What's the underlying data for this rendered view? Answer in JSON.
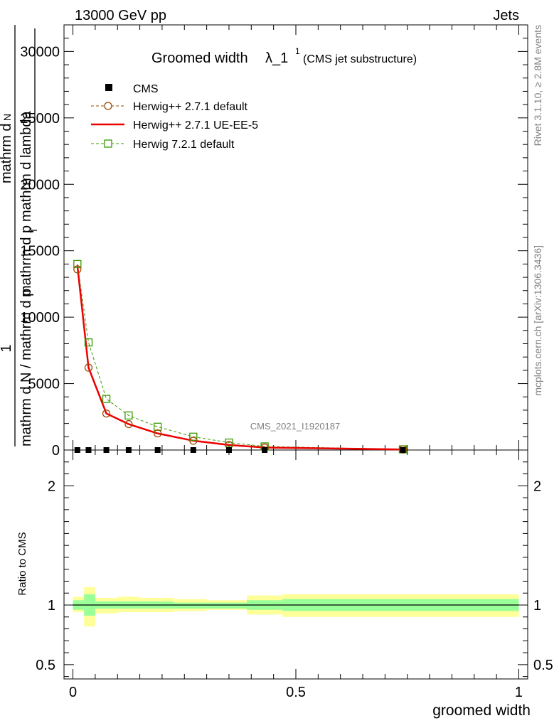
{
  "header": {
    "left": "13000 GeV pp",
    "right": "Jets",
    "watermark": "CMS_2021_I1920187",
    "side_top": "Rivet 3.1.10, ≥ 2.8M events",
    "side_bottom": "mcplots.cern.ch [arXiv:1306.3436]"
  },
  "chart_data": {
    "type": "line",
    "title_main": "Groomed width",
    "title_lambda": "λ_1",
    "title_sup": "1",
    "title_suffix": "(CMS jet substructure)",
    "xlabel": "groomed width",
    "ylabel_num": "1",
    "ylabel_den": "mathrm d N / mathrm d p",
    "ylabel_top": "mathrm d",
    "ylabel_N": "N",
    "ylabel_mid": "mathrm d p",
    "ylabel_sub": "T",
    "ylabel_end": "mathrm d lambda",
    "xlim": [
      -0.02,
      1.02
    ],
    "ylim": [
      0,
      32000
    ],
    "yticks": [
      "0",
      "5000",
      "10000",
      "15000",
      "20000",
      "25000",
      "30000"
    ],
    "ytick_values": [
      0,
      5000,
      10000,
      15000,
      20000,
      25000,
      30000
    ],
    "xticks": [
      "0",
      "0.5",
      "1"
    ],
    "xtick_values": [
      0,
      0.5,
      1
    ],
    "legend": [
      "CMS",
      "Herwig++ 2.7.1 default",
      "Herwig++ 2.7.1 UE-EE-5",
      "Herwig 7.2.1 default"
    ],
    "series": [
      {
        "name": "CMS",
        "color": "#000000",
        "x": [
          0.01,
          0.035,
          0.075,
          0.125,
          0.19,
          0.27,
          0.35,
          0.43,
          0.74
        ],
        "y": [
          0,
          0,
          0,
          0,
          0,
          0,
          0,
          0,
          0
        ]
      },
      {
        "name": "Herwig++ 2.7.1 default",
        "color": "#9a4a00",
        "x": [
          0.01,
          0.035,
          0.075,
          0.125,
          0.19,
          0.27,
          0.35,
          0.43,
          0.74
        ],
        "y": [
          13600,
          6200,
          2750,
          1950,
          1250,
          700,
          380,
          190,
          40
        ]
      },
      {
        "name": "Herwig++ 2.7.1 UE-EE-5",
        "color": "#ee0000",
        "x": [
          0.01,
          0.035,
          0.075,
          0.125,
          0.19,
          0.27,
          0.35,
          0.43,
          0.74
        ],
        "y": [
          13900,
          6200,
          2750,
          1950,
          1250,
          700,
          380,
          190,
          40
        ]
      },
      {
        "name": "Herwig 7.2.1 default",
        "color": "#3a9a00",
        "x": [
          0.01,
          0.035,
          0.075,
          0.125,
          0.19,
          0.27,
          0.35,
          0.43,
          0.74
        ],
        "y": [
          14000,
          8100,
          3850,
          2600,
          1750,
          1000,
          560,
          270,
          50
        ]
      }
    ],
    "ratio": {
      "ylabel": "Ratio to CMS",
      "ylim": [
        0.38,
        2.3
      ],
      "yticks": [
        "0.5",
        "1",
        "2"
      ],
      "ytick_values": [
        0.5,
        1,
        2
      ],
      "bins": [
        0,
        0.025,
        0.05,
        0.1,
        0.15,
        0.225,
        0.3,
        0.39,
        0.47,
        1.0
      ],
      "yellow_lo": [
        0.94,
        0.82,
        0.93,
        0.94,
        0.94,
        0.95,
        0.96,
        0.92,
        0.9
      ],
      "yellow_hi": [
        1.07,
        1.15,
        1.06,
        1.07,
        1.06,
        1.05,
        1.04,
        1.08,
        1.09
      ],
      "green_lo": [
        0.96,
        0.91,
        0.97,
        0.97,
        0.97,
        0.97,
        0.97,
        0.96,
        0.95
      ],
      "green_hi": [
        1.04,
        1.09,
        1.03,
        1.03,
        1.03,
        1.02,
        1.02,
        1.04,
        1.05
      ]
    }
  }
}
